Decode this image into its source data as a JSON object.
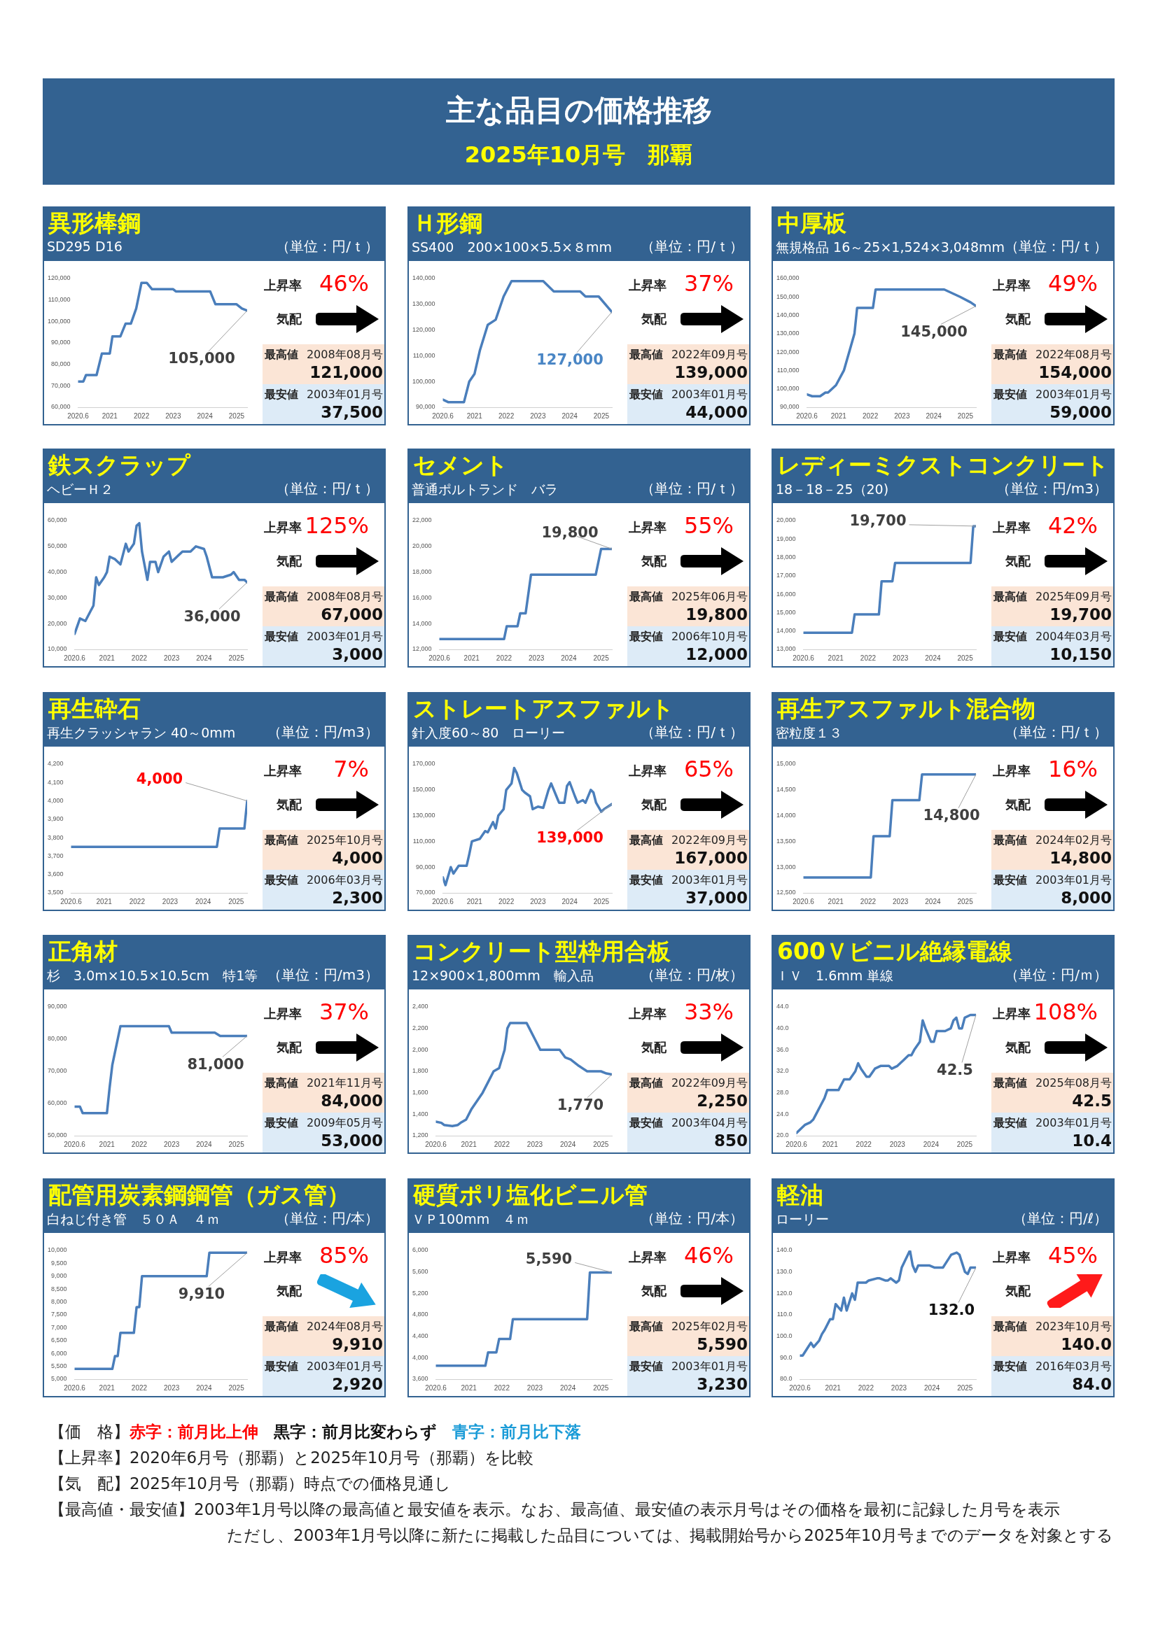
{
  "chart_data": [
    {
      "type": "other",
      "title": "主な品目の価格推移",
      "subtitle": "2025年10月号　那覇",
      "annotations": [
        "【価　格】",
        "赤字：前月比上伸",
        "黒字：前月比変わらず",
        "青字：前月比下落",
        "【上昇率】2020年6月号（那覇）と2025年10月号（那覇）を比較",
        "【気　配】2025年10月号（那覇）時点での価格見通し",
        "【最高値・最安値】2003年1月号以降の最高値と最安値を表示。なお、最高値、最安値の表示月号はその価格を最初に記録した月号を表示",
        "ただし、2003年1月号以降に新たに掲載した品目については、掲載開始号から2025年10月号までのデータを対象とする"
      ]
    },
    {
      "type": "line",
      "title": "異形棒鋼",
      "subtitle": "SD295 D16",
      "color": "#4a7ebb",
      "marker": "none",
      "x": [
        "2020-06",
        "2020-08",
        "2020-09",
        "2021-01",
        "2021-03",
        "2021-06",
        "2021-07",
        "2021-10",
        "2021-12",
        "2022-02",
        "2022-04",
        "2022-06",
        "2022-08",
        "2022-10",
        "2023-06",
        "2023-07",
        "2024-08",
        "2024-10",
        "2025-06",
        "2025-08",
        "2025-10"
      ],
      "values": [
        72000,
        72000,
        75000,
        75000,
        85000,
        85000,
        93000,
        93000,
        99000,
        99000,
        106000,
        118000,
        118000,
        115000,
        115000,
        114000,
        114000,
        108000,
        108000,
        106000,
        105000
      ],
      "xlim": [
        "2020-06",
        "2025-10"
      ],
      "xticks": [
        {
          "value": "2020-06",
          "label": "2020.6"
        },
        {
          "value": "2021-06",
          "label": "2021"
        },
        {
          "value": "2022-06",
          "label": "2022"
        },
        {
          "value": "2023-06",
          "label": "2023"
        },
        {
          "value": "2024-06",
          "label": "2024"
        },
        {
          "value": "2025-06",
          "label": "2025"
        }
      ],
      "ylim": [
        60000,
        120000
      ],
      "yticks": [
        {
          "value": 60000,
          "label": "60,000"
        },
        {
          "value": 70000,
          "label": "70,000"
        },
        {
          "value": 80000,
          "label": "80,000"
        },
        {
          "value": 90000,
          "label": "90,000"
        },
        {
          "value": 100000,
          "label": "100,000"
        },
        {
          "value": 110000,
          "label": "110,000"
        },
        {
          "value": 120000,
          "label": "120,000"
        }
      ],
      "annotations": [
        "（単位：円/ｔ）",
        "上昇率",
        "46%",
        "気配",
        "最高値",
        "2008年08月号",
        "121,000",
        "最安値",
        "2003年01月号",
        "37,500",
        {
          "text": "105,000",
          "x": "2025-10",
          "y": 105000
        }
      ]
    },
    {
      "type": "line",
      "title": "Ｈ形鋼",
      "subtitle": "SS400　200×100×5.5×８mm",
      "color": "#4a7ebb",
      "marker": "none",
      "x": [
        "2020-06",
        "2020-08",
        "2021-02",
        "2021-04",
        "2021-06",
        "2021-08",
        "2021-11",
        "2022-02",
        "2022-05",
        "2022-08",
        "2023-08",
        "2023-12",
        "2024-10",
        "2024-12",
        "2025-05",
        "2025-10"
      ],
      "values": [
        93000,
        92000,
        92000,
        100000,
        103000,
        112000,
        122000,
        124000,
        133000,
        139000,
        139000,
        135000,
        135000,
        133000,
        133000,
        127000
      ],
      "xlim": [
        "2020-06",
        "2025-10"
      ],
      "xticks": [
        {
          "value": "2020-06",
          "label": "2020.6"
        },
        {
          "value": "2021-06",
          "label": "2021"
        },
        {
          "value": "2022-06",
          "label": "2022"
        },
        {
          "value": "2023-06",
          "label": "2023"
        },
        {
          "value": "2024-06",
          "label": "2024"
        },
        {
          "value": "2025-06",
          "label": "2025"
        }
      ],
      "ylim": [
        90000,
        140000
      ],
      "yticks": [
        {
          "value": 90000,
          "label": "90,000"
        },
        {
          "value": 100000,
          "label": "100,000"
        },
        {
          "value": 110000,
          "label": "110,000"
        },
        {
          "value": 120000,
          "label": "120,000"
        },
        {
          "value": 130000,
          "label": "130,000"
        },
        {
          "value": 140000,
          "label": "140,000"
        }
      ],
      "annotations": [
        "（単位：円/ｔ）",
        "上昇率",
        "37%",
        "気配",
        "最高値",
        "2022年09月号",
        "139,000",
        "最安値",
        "2003年01月号",
        "44,000",
        {
          "text": "127,000",
          "x": "2025-10",
          "y": 127000
        }
      ]
    },
    {
      "type": "line",
      "title": "中厚板",
      "subtitle": "無規格品 16～25×1,524×3,048mm",
      "color": "#4a7ebb",
      "marker": "none",
      "x": [
        "2020-06",
        "2020-08",
        "2020-11",
        "2021-01",
        "2021-02",
        "2021-05",
        "2021-08",
        "2021-10",
        "2021-12",
        "2022-01",
        "2022-07",
        "2022-08",
        "2024-10",
        "2025-01",
        "2025-04",
        "2025-08",
        "2025-10"
      ],
      "values": [
        97000,
        96000,
        96000,
        98000,
        98000,
        102000,
        110000,
        120000,
        130000,
        144000,
        144000,
        154000,
        154000,
        152000,
        150000,
        147000,
        145000
      ],
      "xlim": [
        "2020-06",
        "2025-10"
      ],
      "xticks": [
        {
          "value": "2020-06",
          "label": "2020.6"
        },
        {
          "value": "2021-06",
          "label": "2021"
        },
        {
          "value": "2022-06",
          "label": "2022"
        },
        {
          "value": "2023-06",
          "label": "2023"
        },
        {
          "value": "2024-06",
          "label": "2024"
        },
        {
          "value": "2025-06",
          "label": "2025"
        }
      ],
      "ylim": [
        90000,
        160000
      ],
      "yticks": [
        {
          "value": 90000,
          "label": "90,000"
        },
        {
          "value": 100000,
          "label": "100,000"
        },
        {
          "value": 110000,
          "label": "110,000"
        },
        {
          "value": 120000,
          "label": "120,000"
        },
        {
          "value": 130000,
          "label": "130,000"
        },
        {
          "value": 140000,
          "label": "140,000"
        },
        {
          "value": 150000,
          "label": "150,000"
        },
        {
          "value": 160000,
          "label": "160,000"
        }
      ],
      "annotations": [
        "（単位：円/ｔ）",
        "上昇率",
        "49%",
        "気配",
        "最高値",
        "2022年08月号",
        "154,000",
        "最安値",
        "2003年01月号",
        "59,000",
        {
          "text": "145,000",
          "x": "2025-10",
          "y": 145000
        }
      ]
    },
    {
      "type": "line",
      "title": "鉄スクラップ",
      "subtitle": "ヘビーＨ２",
      "color": "#4a7ebb",
      "marker": "none",
      "x": [
        "2020-06",
        "2020-08",
        "2020-10",
        "2020-12",
        "2021-01",
        "2021-02",
        "2021-03",
        "2021-05",
        "2021-06",
        "2021-07",
        "2021-09",
        "2021-11",
        "2022-01",
        "2022-02",
        "2022-04",
        "2022-05",
        "2022-06",
        "2022-07",
        "2022-09",
        "2022-10",
        "2022-12",
        "2023-01",
        "2023-03",
        "2023-05",
        "2023-06",
        "2023-08",
        "2023-10",
        "2024-01",
        "2024-03",
        "2024-06",
        "2024-07",
        "2024-09",
        "2025-01",
        "2025-04",
        "2025-05",
        "2025-07",
        "2025-09",
        "2025-10"
      ],
      "values": [
        16000,
        22000,
        21000,
        25000,
        27000,
        38000,
        35000,
        38000,
        40000,
        46000,
        45000,
        43000,
        51000,
        48000,
        51000,
        58000,
        59000,
        48000,
        37000,
        44000,
        44000,
        40000,
        46000,
        48000,
        44000,
        46000,
        48000,
        48000,
        50000,
        49000,
        46000,
        38000,
        38000,
        39000,
        40000,
        37000,
        37000,
        36000
      ],
      "xlim": [
        "2020-06",
        "2025-10"
      ],
      "xticks": [
        {
          "value": "2020-06",
          "label": "2020.6"
        },
        {
          "value": "2021-06",
          "label": "2021"
        },
        {
          "value": "2022-06",
          "label": "2022"
        },
        {
          "value": "2023-06",
          "label": "2023"
        },
        {
          "value": "2024-06",
          "label": "2024"
        },
        {
          "value": "2025-06",
          "label": "2025"
        }
      ],
      "ylim": [
        10000,
        60000
      ],
      "yticks": [
        {
          "value": 10000,
          "label": "10,000"
        },
        {
          "value": 20000,
          "label": "20,000"
        },
        {
          "value": 30000,
          "label": "30,000"
        },
        {
          "value": 40000,
          "label": "40,000"
        },
        {
          "value": 50000,
          "label": "50,000"
        },
        {
          "value": 60000,
          "label": "60,000"
        }
      ],
      "annotations": [
        "（単位：円/ｔ）",
        "上昇率",
        "125%",
        "気配",
        "最高値",
        "2008年08月号",
        "67,000",
        "最安値",
        "2003年01月号",
        "3,000",
        {
          "text": "36,000",
          "x": "2025-10",
          "y": 36000
        }
      ]
    },
    {
      "type": "line",
      "title": "セメント",
      "subtitle": "普通ポルトランド　バラ",
      "color": "#4a7ebb",
      "marker": "none",
      "x": [
        "2020-06",
        "2022-06",
        "2022-07",
        "2022-11",
        "2022-12",
        "2023-02",
        "2023-04",
        "2025-04",
        "2025-06",
        "2025-10"
      ],
      "values": [
        12800,
        12800,
        13800,
        13800,
        14800,
        14800,
        17800,
        17800,
        19800,
        19800
      ],
      "xlim": [
        "2020-06",
        "2025-10"
      ],
      "xticks": [
        {
          "value": "2020-06",
          "label": "2020.6"
        },
        {
          "value": "2021-06",
          "label": "2021"
        },
        {
          "value": "2022-06",
          "label": "2022"
        },
        {
          "value": "2023-06",
          "label": "2023"
        },
        {
          "value": "2024-06",
          "label": "2024"
        },
        {
          "value": "2025-06",
          "label": "2025"
        }
      ],
      "ylim": [
        12000,
        22000
      ],
      "yticks": [
        {
          "value": 12000,
          "label": "12,000"
        },
        {
          "value": 14000,
          "label": "14,000"
        },
        {
          "value": 16000,
          "label": "16,000"
        },
        {
          "value": 18000,
          "label": "18,000"
        },
        {
          "value": 20000,
          "label": "20,000"
        },
        {
          "value": 22000,
          "label": "22,000"
        }
      ],
      "annotations": [
        "（単位：円/ｔ）",
        "上昇率",
        "55%",
        "気配",
        "最高値",
        "2025年06月号",
        "19,800",
        "最安値",
        "2006年10月号",
        "12,000",
        {
          "text": "19,800",
          "x": "2025-10",
          "y": 19800
        }
      ]
    },
    {
      "type": "line",
      "title": "レディーミクストコンクリート",
      "subtitle": "18－18－25（20)",
      "color": "#4a7ebb",
      "marker": "none",
      "x": [
        "2020-06",
        "2021-12",
        "2022-01",
        "2022-10",
        "2022-11",
        "2023-03",
        "2023-04",
        "2025-08",
        "2025-09",
        "2025-10"
      ],
      "values": [
        13900,
        13900,
        14900,
        14900,
        16700,
        16700,
        17700,
        17700,
        19700,
        19700
      ],
      "xlim": [
        "2020-06",
        "2025-10"
      ],
      "xticks": [
        {
          "value": "2020-06",
          "label": "2020.6"
        },
        {
          "value": "2021-06",
          "label": "2021"
        },
        {
          "value": "2022-06",
          "label": "2022"
        },
        {
          "value": "2023-06",
          "label": "2023"
        },
        {
          "value": "2024-06",
          "label": "2024"
        },
        {
          "value": "2025-06",
          "label": "2025"
        }
      ],
      "ylim": [
        13000,
        20000
      ],
      "yticks": [
        {
          "value": 13000,
          "label": "13,000"
        },
        {
          "value": 14000,
          "label": "14,000"
        },
        {
          "value": 15000,
          "label": "15,000"
        },
        {
          "value": 16000,
          "label": "16,000"
        },
        {
          "value": 17000,
          "label": "17,000"
        },
        {
          "value": 18000,
          "label": "18,000"
        },
        {
          "value": 19000,
          "label": "19,000"
        },
        {
          "value": 20000,
          "label": "20,000"
        }
      ],
      "annotations": [
        "（単位：円/m3）",
        "上昇率",
        "42%",
        "気配",
        "最高値",
        "2025年09月号",
        "19,700",
        "最安値",
        "2004年03月号",
        "10,150",
        {
          "text": "19,700",
          "x": "2025-10",
          "y": 19700
        }
      ]
    },
    {
      "type": "line",
      "title": "再生砕石",
      "subtitle": "再生クラッシャラン 40～0mm",
      "color": "#4a7ebb",
      "marker": "none",
      "x": [
        "2020-06",
        "2024-11",
        "2024-12",
        "2025-09",
        "2025-10"
      ],
      "values": [
        3750,
        3750,
        3850,
        3850,
        4000
      ],
      "xlim": [
        "2020-06",
        "2025-10"
      ],
      "xticks": [
        {
          "value": "2020-06",
          "label": "2020.6"
        },
        {
          "value": "2021-06",
          "label": "2021"
        },
        {
          "value": "2022-06",
          "label": "2022"
        },
        {
          "value": "2023-06",
          "label": "2023"
        },
        {
          "value": "2024-06",
          "label": "2024"
        },
        {
          "value": "2025-06",
          "label": "2025"
        }
      ],
      "ylim": [
        3500,
        4200
      ],
      "yticks": [
        {
          "value": 3500,
          "label": "3,500"
        },
        {
          "value": 3600,
          "label": "3,600"
        },
        {
          "value": 3700,
          "label": "3,700"
        },
        {
          "value": 3800,
          "label": "3,800"
        },
        {
          "value": 3900,
          "label": "3,900"
        },
        {
          "value": 4000,
          "label": "4,000"
        },
        {
          "value": 4100,
          "label": "4,100"
        },
        {
          "value": 4200,
          "label": "4,200"
        }
      ],
      "annotations": [
        "（単位：円/m3）",
        "上昇率",
        "7%",
        "気配",
        "最高値",
        "2025年10月号",
        "4,000",
        "最安値",
        "2006年03月号",
        "2,300",
        {
          "text": "4,000",
          "x": "2025-10",
          "y": 4000
        }
      ]
    },
    {
      "type": "line",
      "title": "ストレートアスファルト",
      "subtitle": "針入度60～80　ローリー",
      "color": "#4a7ebb",
      "marker": "none",
      "x": [
        "2020-06",
        "2020-07",
        "2020-09",
        "2020-10",
        "2020-12",
        "2021-03",
        "2021-04",
        "2021-05",
        "2021-08",
        "2021-10",
        "2021-11",
        "2022-01",
        "2022-02",
        "2022-03",
        "2022-05",
        "2022-06",
        "2022-08",
        "2022-09",
        "2022-10",
        "2022-12",
        "2023-01",
        "2023-03",
        "2023-04",
        "2023-06",
        "2023-08",
        "2023-10",
        "2023-11",
        "2024-01",
        "2024-02",
        "2024-04",
        "2024-05",
        "2024-06",
        "2024-08",
        "2024-09",
        "2024-11",
        "2024-12",
        "2025-02",
        "2025-03",
        "2025-04",
        "2025-06",
        "2025-07",
        "2025-10"
      ],
      "values": [
        82000,
        76000,
        90000,
        85000,
        91000,
        91000,
        100000,
        110000,
        112000,
        118000,
        117000,
        125000,
        120000,
        130000,
        135000,
        150000,
        155000,
        167000,
        163000,
        150000,
        148000,
        145000,
        135000,
        137000,
        136000,
        150000,
        155000,
        145000,
        140000,
        140000,
        153000,
        156000,
        145000,
        140000,
        142000,
        140000,
        150000,
        148000,
        140000,
        133000,
        135000,
        139000
      ],
      "xlim": [
        "2020-06",
        "2025-10"
      ],
      "xticks": [
        {
          "value": "2020-06",
          "label": "2020.6"
        },
        {
          "value": "2021-06",
          "label": "2021"
        },
        {
          "value": "2022-06",
          "label": "2022"
        },
        {
          "value": "2023-06",
          "label": "2023"
        },
        {
          "value": "2024-06",
          "label": "2024"
        },
        {
          "value": "2025-06",
          "label": "2025"
        }
      ],
      "ylim": [
        70000,
        170000
      ],
      "yticks": [
        {
          "value": 70000,
          "label": "70,000"
        },
        {
          "value": 90000,
          "label": "90,000"
        },
        {
          "value": 110000,
          "label": "110,000"
        },
        {
          "value": 130000,
          "label": "130,000"
        },
        {
          "value": 150000,
          "label": "150,000"
        },
        {
          "value": 170000,
          "label": "170,000"
        }
      ],
      "annotations": [
        "（単位：円/ｔ）",
        "上昇率",
        "65%",
        "気配",
        "最高値",
        "2022年09月号",
        "167,000",
        "最安値",
        "2003年01月号",
        "37,000",
        {
          "text": "139,000",
          "x": "2025-10",
          "y": 139000
        }
      ]
    },
    {
      "type": "line",
      "title": "再生アスファルト混合物",
      "subtitle": "密粒度１３",
      "color": "#4a7ebb",
      "marker": "none",
      "x": [
        "2020-06",
        "2022-07",
        "2022-08",
        "2023-02",
        "2023-03",
        "2024-01",
        "2024-02",
        "2025-10"
      ],
      "values": [
        12800,
        12800,
        13600,
        13600,
        14300,
        14300,
        14800,
        14800
      ],
      "xlim": [
        "2020-06",
        "2025-10"
      ],
      "xticks": [
        {
          "value": "2020-06",
          "label": "2020.6"
        },
        {
          "value": "2021-06",
          "label": "2021"
        },
        {
          "value": "2022-06",
          "label": "2022"
        },
        {
          "value": "2023-06",
          "label": "2023"
        },
        {
          "value": "2024-06",
          "label": "2024"
        },
        {
          "value": "2025-06",
          "label": "2025"
        }
      ],
      "ylim": [
        12500,
        15000
      ],
      "yticks": [
        {
          "value": 12500,
          "label": "12,500"
        },
        {
          "value": 13000,
          "label": "13,000"
        },
        {
          "value": 13500,
          "label": "13,500"
        },
        {
          "value": 14000,
          "label": "14,000"
        },
        {
          "value": 14500,
          "label": "14,500"
        },
        {
          "value": 15000,
          "label": "15,000"
        }
      ],
      "annotations": [
        "（単位：円/ｔ）",
        "上昇率",
        "16%",
        "気配",
        "最高値",
        "2024年02月号",
        "14,800",
        "最安値",
        "2003年01月号",
        "8,000",
        {
          "text": "14,800",
          "x": "2025-10",
          "y": 14800
        }
      ]
    },
    {
      "type": "line",
      "title": "正角材",
      "subtitle": "杉　3.0m×10.5×10.5cm　特1等",
      "color": "#4a7ebb",
      "marker": "none",
      "x": [
        "2020-06",
        "2020-08",
        "2020-09",
        "2021-06",
        "2021-07",
        "2021-08",
        "2021-11",
        "2023-05",
        "2023-06",
        "2024-10",
        "2024-12",
        "2025-10"
      ],
      "values": [
        59000,
        59000,
        57000,
        57000,
        65000,
        72000,
        84000,
        84000,
        82000,
        82000,
        81000,
        81000
      ],
      "xlim": [
        "2020-06",
        "2025-10"
      ],
      "xticks": [
        {
          "value": "2020-06",
          "label": "2020.6"
        },
        {
          "value": "2021-06",
          "label": "2021"
        },
        {
          "value": "2022-06",
          "label": "2022"
        },
        {
          "value": "2023-06",
          "label": "2023"
        },
        {
          "value": "2024-06",
          "label": "2024"
        },
        {
          "value": "2025-06",
          "label": "2025"
        }
      ],
      "ylim": [
        50000,
        90000
      ],
      "yticks": [
        {
          "value": 50000,
          "label": "50,000"
        },
        {
          "value": 60000,
          "label": "60,000"
        },
        {
          "value": 70000,
          "label": "70,000"
        },
        {
          "value": 80000,
          "label": "80,000"
        },
        {
          "value": 90000,
          "label": "90,000"
        }
      ],
      "annotations": [
        "（単位：円/m3）",
        "上昇率",
        "37%",
        "気配",
        "最高値",
        "2021年11月号",
        "84,000",
        "最安値",
        "2009年05月号",
        "53,000",
        {
          "text": "81,000",
          "x": "2025-10",
          "y": 81000
        }
      ]
    },
    {
      "type": "line",
      "title": "コンクリート型枠用合板",
      "subtitle": "12×900×1,800mm　輸入品",
      "color": "#4a7ebb",
      "marker": "none",
      "x": [
        "2020-06",
        "2020-08",
        "2020-09",
        "2020-12",
        "2021-02",
        "2021-03",
        "2021-05",
        "2021-07",
        "2021-11",
        "2022-01",
        "2022-03",
        "2022-05",
        "2022-07",
        "2022-08",
        "2022-09",
        "2023-03",
        "2023-04",
        "2023-06",
        "2023-08",
        "2024-03",
        "2024-05",
        "2024-07",
        "2024-10",
        "2025-01",
        "2025-06",
        "2025-08",
        "2025-10"
      ],
      "values": [
        1330,
        1320,
        1300,
        1290,
        1300,
        1320,
        1350,
        1450,
        1600,
        1700,
        1800,
        1830,
        2000,
        2200,
        2250,
        2250,
        2200,
        2100,
        2000,
        2000,
        1930,
        1910,
        1850,
        1800,
        1800,
        1780,
        1770
      ],
      "xlim": [
        "2020-06",
        "2025-10"
      ],
      "xticks": [
        {
          "value": "2020-06",
          "label": "2020.6"
        },
        {
          "value": "2021-06",
          "label": "2021"
        },
        {
          "value": "2022-06",
          "label": "2022"
        },
        {
          "value": "2023-06",
          "label": "2023"
        },
        {
          "value": "2024-06",
          "label": "2024"
        },
        {
          "value": "2025-06",
          "label": "2025"
        }
      ],
      "ylim": [
        1200,
        2400
      ],
      "yticks": [
        {
          "value": 1200,
          "label": "1,200"
        },
        {
          "value": 1400,
          "label": "1,400"
        },
        {
          "value": 1600,
          "label": "1,600"
        },
        {
          "value": 1800,
          "label": "1,800"
        },
        {
          "value": 2000,
          "label": "2,000"
        },
        {
          "value": 2200,
          "label": "2,200"
        },
        {
          "value": 2400,
          "label": "2,400"
        }
      ],
      "annotations": [
        "（単位：円/枚）",
        "上昇率",
        "33%",
        "気配",
        "最高値",
        "2022年09月号",
        "2,250",
        "最安値",
        "2003年04月号",
        "850",
        {
          "text": "1,770",
          "x": "2025-10",
          "y": 1770
        }
      ]
    },
    {
      "type": "line",
      "title": "600Ｖビニル絶縁電線",
      "subtitle": "ＩＶ　1.6mm 単線",
      "color": "#4a7ebb",
      "marker": "none",
      "x": [
        "2020-06",
        "2020-08",
        "2020-09",
        "2020-11",
        "2020-12",
        "2021-01",
        "2021-03",
        "2021-04",
        "2021-05",
        "2021-08",
        "2021-09",
        "2021-11",
        "2022-01",
        "2022-03",
        "2022-04",
        "2022-05",
        "2022-07",
        "2022-08",
        "2022-10",
        "2022-12",
        "2023-03",
        "2023-04",
        "2023-06",
        "2023-08",
        "2023-10",
        "2023-11",
        "2023-12",
        "2024-02",
        "2024-03",
        "2024-04",
        "2024-06",
        "2024-07",
        "2024-08",
        "2024-11",
        "2025-01",
        "2025-02",
        "2025-03",
        "2025-04",
        "2025-05",
        "2025-06",
        "2025-08",
        "2025-10"
      ],
      "values": [
        20.5,
        21.5,
        22,
        22.5,
        23,
        24,
        26,
        27,
        28.5,
        28.5,
        28.5,
        30.5,
        30.5,
        32,
        33.5,
        32.5,
        31,
        31,
        32.5,
        33,
        33,
        32.5,
        33,
        34,
        35,
        35,
        36,
        37.5,
        41.5,
        40,
        37.5,
        37.5,
        39.5,
        39.5,
        40,
        41.5,
        42,
        40,
        40,
        42,
        42.5,
        42.5
      ],
      "xlim": [
        "2020-06",
        "2025-10"
      ],
      "xticks": [
        {
          "value": "2020-06",
          "label": "2020.6"
        },
        {
          "value": "2021-06",
          "label": "2021"
        },
        {
          "value": "2022-06",
          "label": "2022"
        },
        {
          "value": "2023-06",
          "label": "2023"
        },
        {
          "value": "2024-06",
          "label": "2024"
        },
        {
          "value": "2025-06",
          "label": "2025"
        }
      ],
      "ylim": [
        20,
        44
      ],
      "yticks": [
        {
          "value": 20,
          "label": "20.0"
        },
        {
          "value": 24,
          "label": "24.0"
        },
        {
          "value": 28,
          "label": "28.0"
        },
        {
          "value": 32,
          "label": "32.0"
        },
        {
          "value": 36,
          "label": "36.0"
        },
        {
          "value": 40,
          "label": "40.0"
        },
        {
          "value": 44,
          "label": "44.0"
        }
      ],
      "annotations": [
        "（単位：円/ｍ）",
        "上昇率",
        "108%",
        "気配",
        "最高値",
        "2025年08月号",
        "42.5",
        "最安値",
        "2003年01月号",
        "10.4",
        {
          "text": "42.5",
          "x": "2025-10",
          "y": 42.5
        }
      ]
    },
    {
      "type": "line",
      "title": "配管用炭素鋼鋼管（ガス管）",
      "subtitle": "白ねじ付き管　５０Ａ　４ｍ",
      "color": "#4a7ebb",
      "marker": "none",
      "x": [
        "2020-06",
        "2021-08",
        "2021-09",
        "2021-10",
        "2021-11",
        "2022-04",
        "2022-05",
        "2022-06",
        "2022-07",
        "2024-07",
        "2024-08",
        "2025-10"
      ],
      "values": [
        5400,
        5400,
        5900,
        5900,
        6800,
        6800,
        7800,
        7800,
        9000,
        9000,
        9910,
        9910
      ],
      "xlim": [
        "2020-06",
        "2025-10"
      ],
      "xticks": [
        {
          "value": "2020-06",
          "label": "2020.6"
        },
        {
          "value": "2021-06",
          "label": "2021"
        },
        {
          "value": "2022-06",
          "label": "2022"
        },
        {
          "value": "2023-06",
          "label": "2023"
        },
        {
          "value": "2024-06",
          "label": "2024"
        },
        {
          "value": "2025-06",
          "label": "2025"
        }
      ],
      "ylim": [
        5000,
        10000
      ],
      "yticks": [
        {
          "value": 5000,
          "label": "5,000"
        },
        {
          "value": 5500,
          "label": "5,500"
        },
        {
          "value": 6000,
          "label": "6,000"
        },
        {
          "value": 6500,
          "label": "6,500"
        },
        {
          "value": 7000,
          "label": "7,000"
        },
        {
          "value": 7500,
          "label": "7,500"
        },
        {
          "value": 8000,
          "label": "8,000"
        },
        {
          "value": 8500,
          "label": "8,500"
        },
        {
          "value": 9000,
          "label": "9,000"
        },
        {
          "value": 9500,
          "label": "9,500"
        },
        {
          "value": 10000,
          "label": "10,000"
        }
      ],
      "annotations": [
        "（単位：円/本）",
        "上昇率",
        "85%",
        "気配",
        "最高値",
        "2024年08月号",
        "9,910",
        "最安値",
        "2003年01月号",
        "2,920",
        {
          "text": "9,910",
          "x": "2025-10",
          "y": 9910
        }
      ]
    },
    {
      "type": "line",
      "title": "硬質ポリ塩化ビニル管",
      "subtitle": "ＶＰ100mm　４ｍ",
      "color": "#4a7ebb",
      "marker": "none",
      "x": [
        "2020-06",
        "2021-12",
        "2022-01",
        "2022-04",
        "2022-05",
        "2022-09",
        "2022-10",
        "2025-01",
        "2025-02",
        "2025-10"
      ],
      "values": [
        3850,
        3850,
        4100,
        4100,
        4350,
        4350,
        4720,
        4720,
        5590,
        5590
      ],
      "xlim": [
        "2020-06",
        "2025-10"
      ],
      "xticks": [
        {
          "value": "2020-06",
          "label": "2020.6"
        },
        {
          "value": "2021-06",
          "label": "2021"
        },
        {
          "value": "2022-06",
          "label": "2022"
        },
        {
          "value": "2023-06",
          "label": "2023"
        },
        {
          "value": "2024-06",
          "label": "2024"
        },
        {
          "value": "2025-06",
          "label": "2025"
        }
      ],
      "ylim": [
        3600,
        6000
      ],
      "yticks": [
        {
          "value": 3600,
          "label": "3,600"
        },
        {
          "value": 4000,
          "label": "4,000"
        },
        {
          "value": 4400,
          "label": "4,400"
        },
        {
          "value": 4800,
          "label": "4,800"
        },
        {
          "value": 5200,
          "label": "5,200"
        },
        {
          "value": 5600,
          "label": "5,600"
        },
        {
          "value": 6000,
          "label": "6,000"
        }
      ],
      "annotations": [
        "（単位：円/本）",
        "上昇率",
        "46%",
        "気配",
        "最高値",
        "2025年02月号",
        "5,590",
        "最安値",
        "2003年01月号",
        "3,230",
        {
          "text": "5,590",
          "x": "2025-10",
          "y": 5590
        }
      ]
    },
    {
      "type": "line",
      "title": "軽油",
      "subtitle": "ローリー",
      "color": "#4a7ebb",
      "marker": "none",
      "x": [
        "2020-06",
        "2020-07",
        "2020-09",
        "2020-10",
        "2020-11",
        "2021-01",
        "2021-02",
        "2021-03",
        "2021-05",
        "2021-06",
        "2021-07",
        "2021-09",
        "2021-10",
        "2021-11",
        "2022-01",
        "2022-02",
        "2022-03",
        "2022-06",
        "2022-07",
        "2022-10",
        "2022-11",
        "2023-01",
        "2023-02",
        "2023-03",
        "2023-05",
        "2023-06",
        "2023-07",
        "2023-10",
        "2023-11",
        "2023-12",
        "2024-01",
        "2024-02",
        "2024-05",
        "2024-07",
        "2024-10",
        "2024-11",
        "2025-01",
        "2025-03",
        "2025-04",
        "2025-06",
        "2025-07",
        "2025-08",
        "2025-10"
      ],
      "values": [
        91,
        91,
        95,
        97,
        95,
        98,
        101,
        103,
        108,
        108,
        115,
        112,
        118,
        112,
        120,
        117,
        125,
        125,
        126,
        127,
        127,
        126,
        126,
        127,
        125,
        126,
        132,
        140,
        133,
        130,
        133,
        133,
        133,
        132,
        132,
        134,
        138,
        139,
        138,
        130,
        129,
        132,
        132
      ],
      "xlim": [
        "2020-06",
        "2025-10"
      ],
      "xticks": [
        {
          "value": "2020-06",
          "label": "2020.6"
        },
        {
          "value": "2021-06",
          "label": "2021"
        },
        {
          "value": "2022-06",
          "label": "2022"
        },
        {
          "value": "2023-06",
          "label": "2023"
        },
        {
          "value": "2024-06",
          "label": "2024"
        },
        {
          "value": "2025-06",
          "label": "2025"
        }
      ],
      "ylim": [
        80,
        140
      ],
      "yticks": [
        {
          "value": 80,
          "label": "80.0"
        },
        {
          "value": 90,
          "label": "90.0"
        },
        {
          "value": 100,
          "label": "100.0"
        },
        {
          "value": 110,
          "label": "110.0"
        },
        {
          "value": 120,
          "label": "120.0"
        },
        {
          "value": 130,
          "label": "130.0"
        },
        {
          "value": 140,
          "label": "140.0"
        }
      ],
      "annotations": [
        "（単位：円/ℓ）",
        "上昇率",
        "45%",
        "気配",
        "最高値",
        "2023年10月号",
        "140.0",
        "最安値",
        "2016年03月号",
        "84.0",
        {
          "text": "132.0",
          "x": "2025-10",
          "y": 132
        }
      ]
    }
  ]
}
